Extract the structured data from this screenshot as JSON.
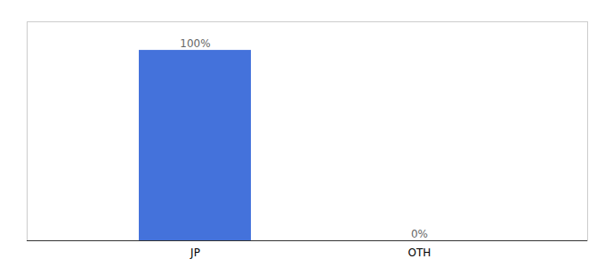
{
  "chart_data": {
    "type": "bar",
    "categories": [
      "JP",
      "OTH"
    ],
    "values": [
      100,
      0
    ],
    "value_labels": [
      "100%",
      "0%"
    ],
    "color": "#4472DB",
    "ylim": [
      0,
      115
    ],
    "data_labels": true,
    "tick_labels": "x"
  }
}
